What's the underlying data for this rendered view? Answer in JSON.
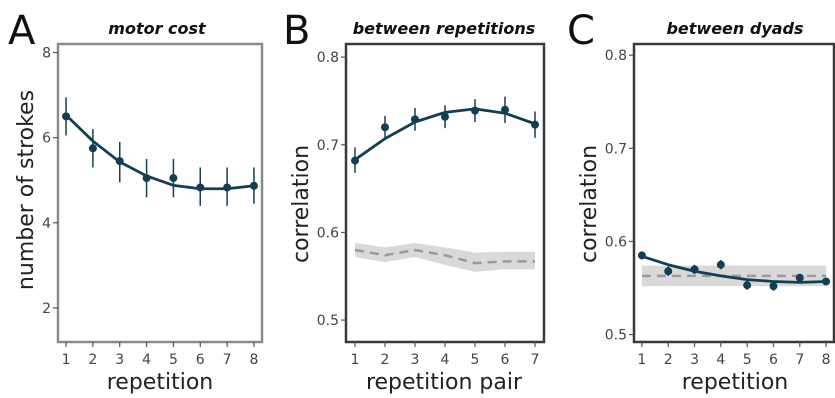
{
  "colors": {
    "series": "#153e52",
    "baseline_line": "#9a9a9a",
    "baseline_band": "#d9d9d9"
  },
  "chart_data": [
    {
      "type": "line",
      "panel_letter": "A",
      "title": "motor cost",
      "xlabel": "repetition",
      "ylabel": "number of strokes",
      "x": [
        1,
        2,
        3,
        4,
        5,
        6,
        7,
        8
      ],
      "xlim": [
        0.7,
        8.3
      ],
      "ylim": [
        1.2,
        8.2
      ],
      "yticks": [
        2,
        4,
        6,
        8
      ],
      "series": [
        {
          "values": [
            6.5,
            5.75,
            5.45,
            5.05,
            5.05,
            4.83,
            4.83,
            4.87
          ],
          "err_low": [
            6.05,
            5.3,
            4.95,
            4.6,
            4.6,
            4.4,
            4.4,
            4.45
          ],
          "err_high": [
            6.95,
            6.2,
            5.9,
            5.5,
            5.5,
            5.3,
            5.3,
            5.3
          ],
          "fit": [
            6.53,
            5.92,
            5.43,
            5.1,
            4.88,
            4.8,
            4.8,
            4.87
          ]
        }
      ]
    },
    {
      "type": "line",
      "panel_letter": "B",
      "title": "between repetitions",
      "xlabel": "repetition pair",
      "ylabel": "correlation",
      "x": [
        1,
        2,
        3,
        4,
        5,
        6,
        7
      ],
      "xlim": [
        0.7,
        7.3
      ],
      "ylim": [
        0.475,
        0.815
      ],
      "yticks": [
        0.5,
        0.6,
        0.7,
        0.8
      ],
      "series": [
        {
          "values": [
            0.682,
            0.72,
            0.729,
            0.732,
            0.739,
            0.74,
            0.723
          ],
          "err_low": [
            0.668,
            0.707,
            0.716,
            0.719,
            0.726,
            0.725,
            0.708
          ],
          "err_high": [
            0.697,
            0.733,
            0.742,
            0.745,
            0.752,
            0.755,
            0.738
          ],
          "fit": [
            0.683,
            0.707,
            0.726,
            0.737,
            0.741,
            0.736,
            0.724
          ]
        },
        {
          "baseline": [
            0.58,
            0.574,
            0.58,
            0.574,
            0.565,
            0.567,
            0.567
          ],
          "band_low": [
            0.572,
            0.566,
            0.572,
            0.563,
            0.555,
            0.558,
            0.558
          ],
          "band_high": [
            0.588,
            0.583,
            0.588,
            0.583,
            0.577,
            0.578,
            0.578
          ]
        }
      ]
    },
    {
      "type": "line",
      "panel_letter": "C",
      "title": "between dyads",
      "xlabel": "repetition",
      "ylabel": "correlation",
      "x": [
        1,
        2,
        3,
        4,
        5,
        6,
        7,
        8
      ],
      "xlim": [
        0.7,
        8.3
      ],
      "ylim": [
        0.492,
        0.812
      ],
      "yticks": [
        0.5,
        0.6,
        0.7,
        0.8
      ],
      "series": [
        {
          "values": [
            0.585,
            0.568,
            0.57,
            0.575,
            0.553,
            0.552,
            0.561,
            0.557
          ],
          "err_low": [
            0.581,
            0.563,
            0.565,
            0.57,
            0.548,
            0.547,
            0.557,
            0.553
          ],
          "err_high": [
            0.589,
            0.573,
            0.575,
            0.58,
            0.558,
            0.557,
            0.565,
            0.561
          ],
          "fit": [
            0.584,
            0.575,
            0.568,
            0.563,
            0.559,
            0.557,
            0.556,
            0.557
          ]
        },
        {
          "baseline": [
            0.563,
            0.563,
            0.563,
            0.563,
            0.563,
            0.563,
            0.563,
            0.563
          ],
          "band_low": [
            0.552,
            0.552,
            0.552,
            0.552,
            0.552,
            0.552,
            0.552,
            0.552
          ],
          "band_high": [
            0.574,
            0.574,
            0.574,
            0.574,
            0.574,
            0.574,
            0.574,
            0.574
          ]
        }
      ]
    }
  ]
}
